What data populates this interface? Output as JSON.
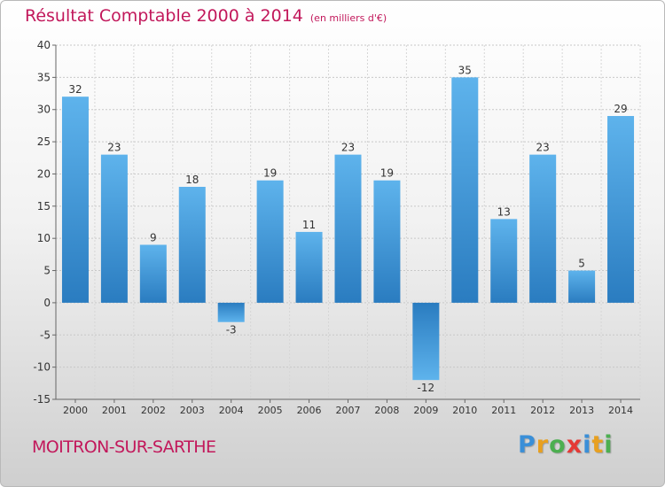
{
  "title": "Résultat Comptable 2000 à 2014",
  "subtitle": "(en milliers d'€)",
  "commune": "MOITRON-SUR-SARTHE",
  "logo": {
    "letters": [
      {
        "char": "P",
        "color": "#3a8fd8"
      },
      {
        "char": "r",
        "color": "#e8a020"
      },
      {
        "char": "o",
        "color": "#4caf50"
      },
      {
        "char": "x",
        "color": "#e53935"
      },
      {
        "char": "i",
        "color": "#3a8fd8"
      },
      {
        "char": "t",
        "color": "#e8a020"
      },
      {
        "char": "i",
        "color": "#4caf50"
      }
    ]
  },
  "colors": {
    "bar_light": "#5eb3ec",
    "bar_dark": "#2a7cc0",
    "accent": "#c2185b"
  },
  "chart_data": {
    "type": "bar",
    "categories": [
      "2000",
      "2001",
      "2002",
      "2003",
      "2004",
      "2005",
      "2006",
      "2007",
      "2008",
      "2009",
      "2010",
      "2011",
      "2012",
      "2013",
      "2014"
    ],
    "values": [
      32,
      23,
      9,
      18,
      -3,
      19,
      11,
      23,
      19,
      -12,
      35,
      13,
      23,
      5,
      29
    ],
    "data_labels": [
      "32",
      "23",
      "9",
      "18",
      "-3",
      "19",
      "11",
      "23",
      "19",
      "-12",
      "35",
      "13",
      "23",
      "5",
      "29"
    ],
    "ylim": [
      -15,
      40
    ],
    "yticks": [
      -15,
      -10,
      -5,
      0,
      5,
      10,
      15,
      20,
      25,
      30,
      35,
      40
    ],
    "ytick_labels": [
      "-15",
      "-10",
      "-5",
      "0",
      "5",
      "10",
      "15",
      "20",
      "25",
      "30",
      "35",
      "40"
    ],
    "grid": true,
    "legend": "none"
  }
}
